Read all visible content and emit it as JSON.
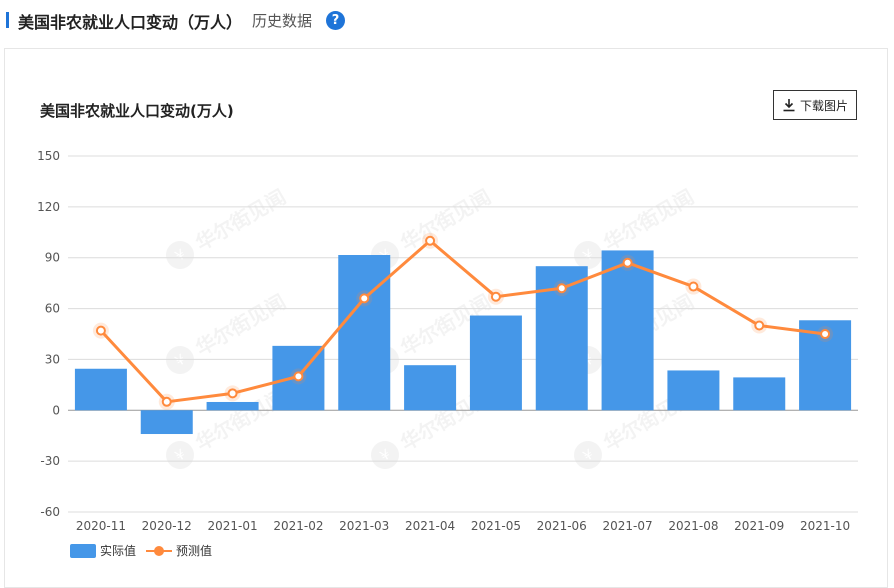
{
  "header": {
    "title": "美国非农就业人口变动（万人）",
    "subtitle": "历史数据",
    "help_icon": "?"
  },
  "toolbar": {
    "download_label": "下载图片",
    "download_icon": "download-icon"
  },
  "watermark": "华尔街见闻",
  "colors": {
    "accent": "#1e74d8",
    "bar": "#4597e8",
    "line": "#ff8a3d"
  },
  "chart_data": {
    "type": "bar",
    "title": "美国非农就业人口变动(万人)",
    "xlabel": "",
    "ylabel": "",
    "categories": [
      "2020-11",
      "2020-12",
      "2021-01",
      "2021-02",
      "2021-03",
      "2021-04",
      "2021-05",
      "2021-06",
      "2021-07",
      "2021-08",
      "2021-09",
      "2021-10"
    ],
    "series": [
      {
        "name": "实际值",
        "type": "bar",
        "values": [
          24.5,
          -14,
          4.9,
          38,
          91.6,
          26.6,
          55.9,
          85,
          94.3,
          23.5,
          19.4,
          53.1
        ]
      },
      {
        "name": "预测值",
        "type": "line",
        "values": [
          47,
          5,
          10,
          20,
          66,
          100,
          67,
          72,
          87,
          73,
          50,
          45
        ]
      }
    ],
    "ylim": [
      -60,
      150
    ],
    "yticks": [
      150,
      120,
      90,
      60,
      30,
      0,
      -30,
      -60
    ],
    "grid": true,
    "legend_position": "bottom-left"
  }
}
